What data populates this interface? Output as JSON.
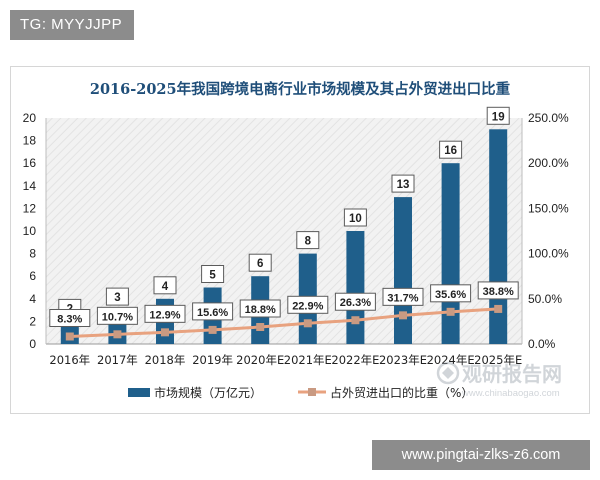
{
  "top_tag": "TG: MYYJJPP",
  "bottom_banner": "www.pingtai-zlks-z6.com",
  "watermark": {
    "name": "观研报告网",
    "url": "www.chinabaogao.com"
  },
  "colors": {
    "bar": "#1f5f8b",
    "line": "#e8a27f",
    "marker": "#c99a82",
    "title": "#1f4e79",
    "plot_bg": "#f2f2f2",
    "tag_bg": "#8c8c8c"
  },
  "chart_data": {
    "type": "bar",
    "title": "2016-2025年我国跨境电商行业市场规模及其占外贸进出口比重",
    "categories": [
      "2016年",
      "2017年",
      "2018年",
      "2019年",
      "2020年E",
      "2021年E",
      "2022年E",
      "2023年E",
      "2024年E",
      "2025年E"
    ],
    "series": [
      {
        "name": "市场规模（万亿元）",
        "type": "bar",
        "axis": "left",
        "values": [
          2,
          3,
          4,
          5,
          6,
          8,
          10,
          13,
          16,
          19
        ],
        "labels": [
          "2",
          "3",
          "4",
          "5",
          "6",
          "8",
          "10",
          "13",
          "16",
          "19"
        ]
      },
      {
        "name": "占外贸进出口的比重（%）",
        "type": "line",
        "axis": "right",
        "values": [
          8.3,
          10.7,
          12.9,
          15.6,
          18.8,
          22.9,
          26.3,
          31.7,
          35.6,
          38.8
        ],
        "labels": [
          "8.3%",
          "10.7%",
          "12.9%",
          "15.6%",
          "18.8%",
          "22.9%",
          "26.3%",
          "31.7%",
          "35.6%",
          "38.8%"
        ]
      }
    ],
    "y_left": {
      "min": 0,
      "max": 20,
      "ticks": [
        "0",
        "2",
        "4",
        "6",
        "8",
        "10",
        "12",
        "14",
        "16",
        "18",
        "20"
      ]
    },
    "y_right": {
      "min": 0,
      "max": 250,
      "ticks": [
        "0.0%",
        "50.0%",
        "100.0%",
        "150.0%",
        "200.0%",
        "250.0%"
      ]
    },
    "legend_position": "bottom",
    "grid": false
  }
}
